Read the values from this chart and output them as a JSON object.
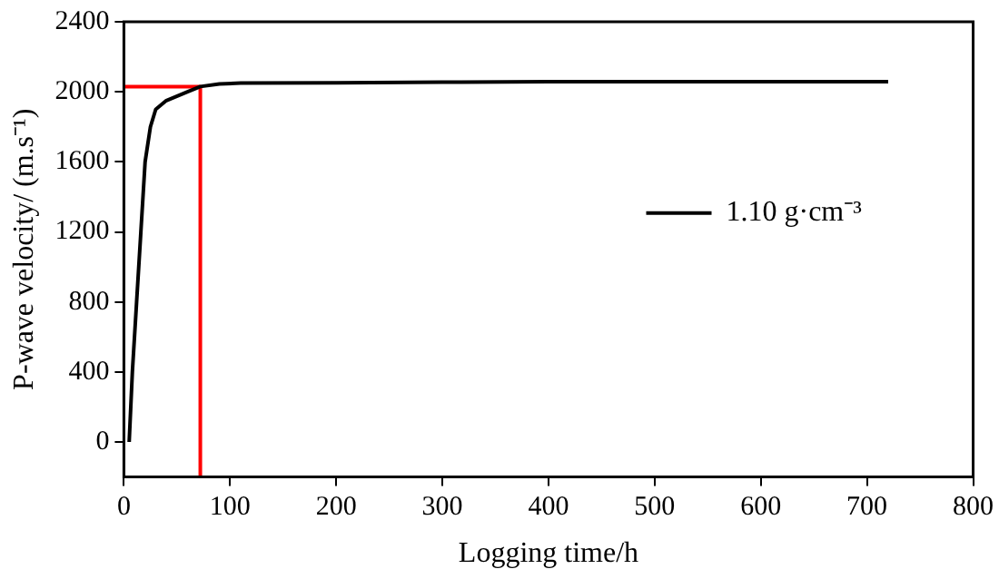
{
  "chart_data": {
    "type": "line",
    "xlabel": "Logging time/h",
    "ylabel": "P-wave velocity/ (m.s⁻¹)",
    "xlim": [
      0,
      800
    ],
    "xticks": [
      0,
      100,
      200,
      300,
      400,
      500,
      600,
      700,
      800
    ],
    "ylim": [
      -200,
      2400
    ],
    "yticks": [
      0,
      400,
      800,
      1200,
      1600,
      2000,
      2400
    ],
    "grid": false,
    "legend": "right",
    "marker": "none",
    "line_style": "solid",
    "series": [
      {
        "name": "1.10 g·cm⁻³",
        "color": "#000000",
        "x": [
          5,
          8,
          12,
          16,
          20,
          25,
          30,
          40,
          60,
          72,
          90,
          110,
          200,
          300,
          400,
          720
        ],
        "values": [
          0,
          400,
          800,
          1200,
          1600,
          1800,
          1900,
          1950,
          2000,
          2030,
          2045,
          2050,
          2052,
          2055,
          2058,
          2058
        ]
      },
      {
        "color": "#ff0000",
        "x": [
          0,
          72,
          72
        ],
        "values": [
          2030,
          2030,
          -200
        ]
      }
    ]
  }
}
